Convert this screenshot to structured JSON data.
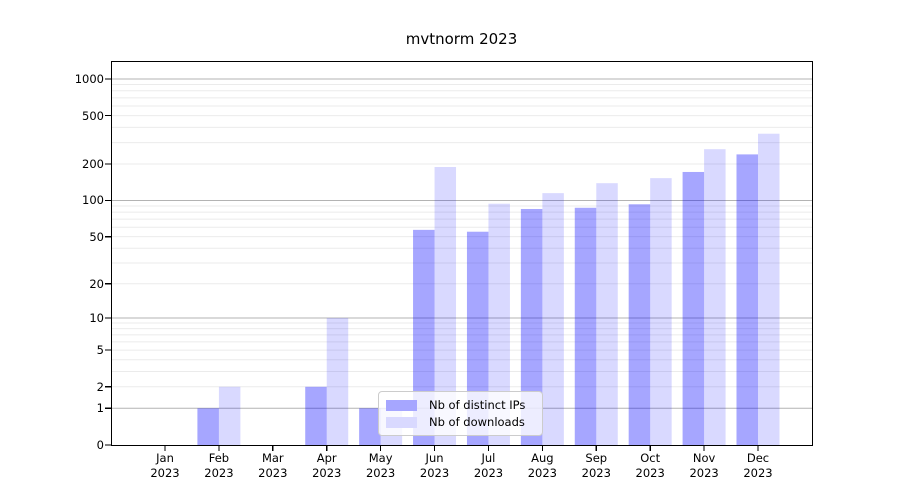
{
  "chart_data": {
    "type": "bar",
    "title": "mvtnorm 2023",
    "categories": [
      "Jan 2023",
      "Feb 2023",
      "Mar 2023",
      "Apr 2023",
      "May 2023",
      "Jun 2023",
      "Jul 2023",
      "Aug 2023",
      "Sep 2023",
      "Oct 2023",
      "Nov 2023",
      "Dec 2023"
    ],
    "series": [
      {
        "name": "Nb of distinct IPs",
        "color": "#a6a6ff",
        "fill": "rgba(0,0,255,0.35)",
        "values": [
          0,
          1,
          0,
          2,
          1,
          57,
          55,
          85,
          87,
          93,
          172,
          240
        ]
      },
      {
        "name": "Nb of downloads",
        "color": "#d9d9ff",
        "fill": "rgba(0,0,255,0.15)",
        "values": [
          0,
          2,
          0,
          10,
          1,
          189,
          94,
          115,
          139,
          153,
          265,
          355
        ]
      }
    ],
    "xlabel": "",
    "ylabel": "",
    "yscale": "log1p",
    "ylim": [
      0,
      1400
    ],
    "yticks": [
      0,
      1,
      2,
      5,
      10,
      20,
      50,
      100,
      200,
      500,
      1000
    ],
    "grid": {
      "on": true,
      "major_values": [
        1,
        10,
        100,
        1000
      ],
      "minor_values": [
        2,
        3,
        4,
        5,
        6,
        7,
        8,
        9,
        20,
        30,
        40,
        50,
        60,
        70,
        80,
        90,
        200,
        300,
        400,
        500,
        600,
        700,
        800,
        900
      ],
      "major_color": "#b3b3b3",
      "minor_color": "#ebebeb"
    },
    "legend": {
      "position": "lower center",
      "entries": [
        "Nb of distinct IPs",
        "Nb of downloads"
      ]
    }
  }
}
